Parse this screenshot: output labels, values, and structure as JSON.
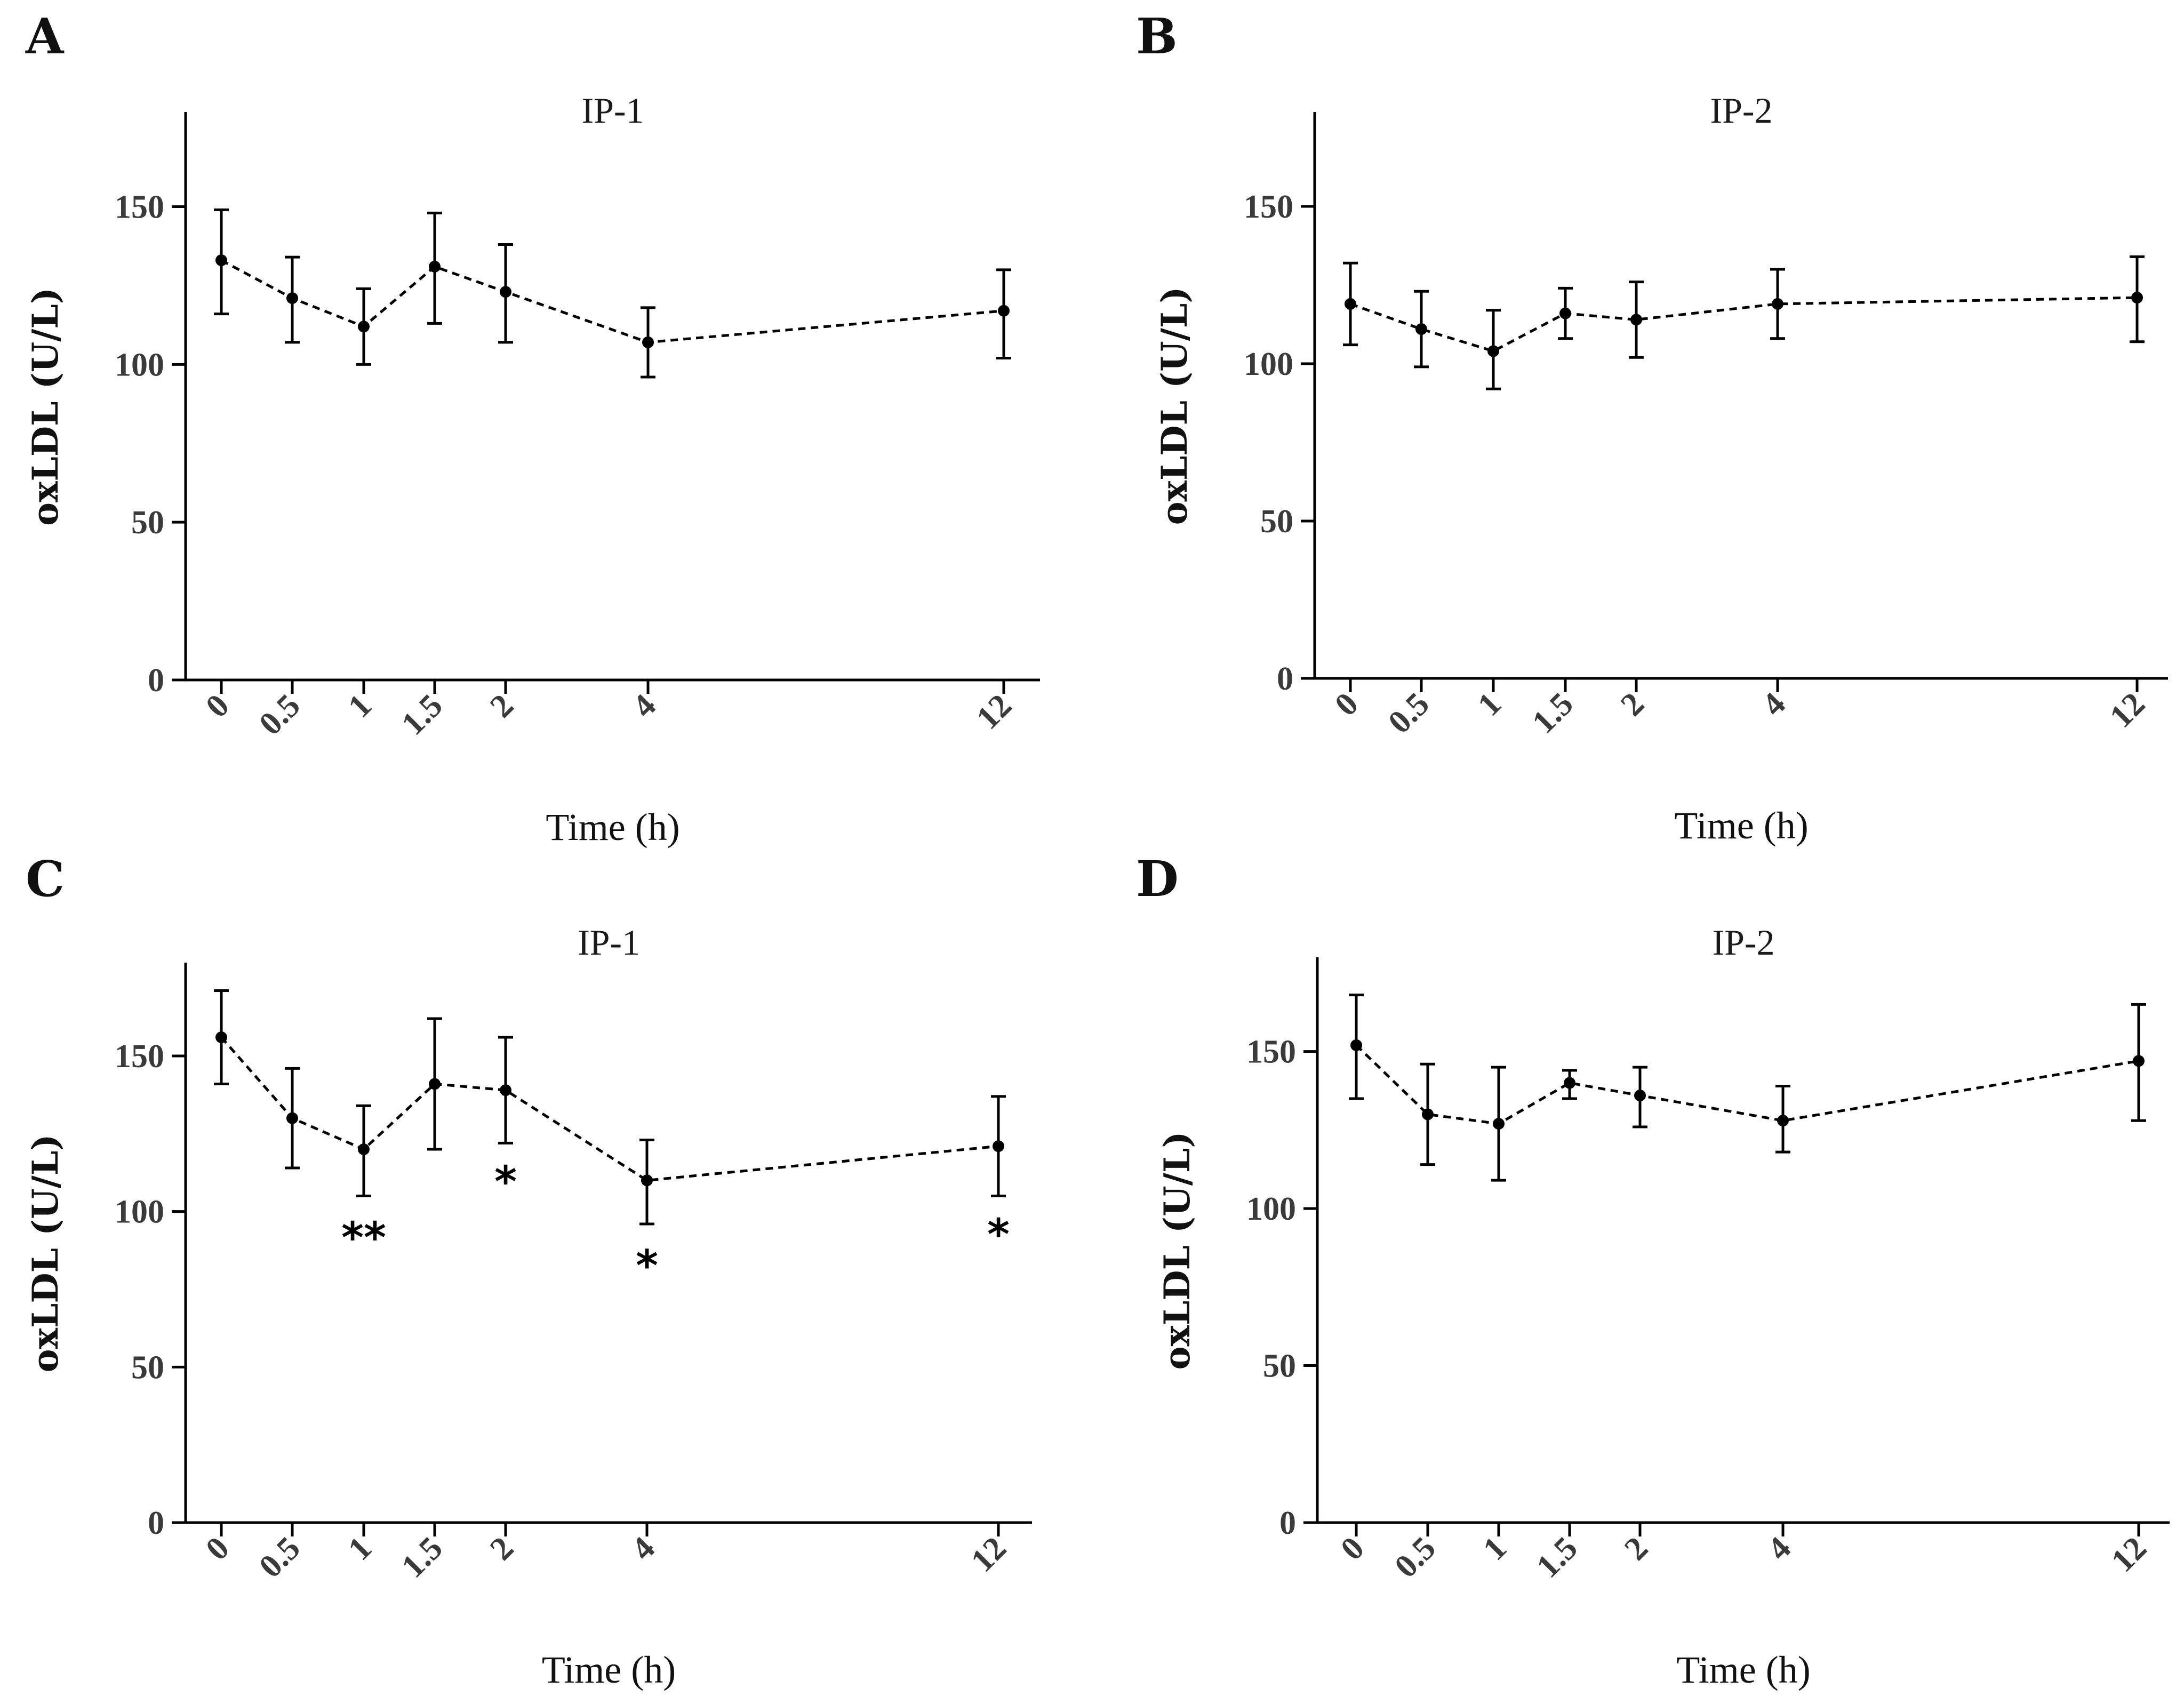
{
  "chart_data": [
    {
      "panel": "A",
      "type": "line",
      "title": "IP-1",
      "xlabel": "Time (h)",
      "ylabel": "oxLDL (U/L)",
      "ylim": [
        0,
        180
      ],
      "yticks": [
        0,
        50,
        100,
        150
      ],
      "x": [
        0,
        0.5,
        1,
        1.5,
        2,
        4,
        12
      ],
      "x_tick_labels": [
        "0",
        "0.5",
        "1",
        "1.5",
        "2",
        "4",
        "12"
      ],
      "series": [
        {
          "name": "oxLDL",
          "values": [
            133,
            121,
            112,
            131,
            123,
            107,
            117
          ],
          "error_low": [
            116,
            107,
            100,
            113,
            107,
            96,
            102
          ],
          "error_high": [
            149,
            134,
            124,
            148,
            138,
            118,
            130
          ]
        }
      ],
      "annotations": [],
      "grid": false
    },
    {
      "panel": "B",
      "type": "line",
      "title": "IP-2",
      "xlabel": "Time (h)",
      "ylabel": "oxLDL (U/L)",
      "ylim": [
        0,
        180
      ],
      "yticks": [
        0,
        50,
        100,
        150
      ],
      "x": [
        0,
        0.5,
        1,
        1.5,
        2,
        4,
        12
      ],
      "x_tick_labels": [
        "0",
        "0.5",
        "1",
        "1.5",
        "2",
        "4",
        "12"
      ],
      "series": [
        {
          "name": "oxLDL",
          "values": [
            119,
            111,
            104,
            116,
            114,
            119,
            121
          ],
          "error_low": [
            106,
            99,
            92,
            108,
            102,
            108,
            107
          ],
          "error_high": [
            132,
            123,
            117,
            124,
            126,
            130,
            134
          ]
        }
      ],
      "annotations": [],
      "grid": false
    },
    {
      "panel": "C",
      "type": "line",
      "title": "IP-1",
      "xlabel": "Time (h)",
      "ylabel": "oxLDL (U/L)",
      "ylim": [
        0,
        180
      ],
      "yticks": [
        0,
        50,
        100,
        150
      ],
      "x": [
        0,
        0.5,
        1,
        1.5,
        2,
        4,
        12
      ],
      "x_tick_labels": [
        "0",
        "0.5",
        "1",
        "1.5",
        "2",
        "4",
        "12"
      ],
      "series": [
        {
          "name": "oxLDL",
          "values": [
            156,
            130,
            120,
            141,
            139,
            110,
            121
          ],
          "error_low": [
            141,
            114,
            105,
            120,
            122,
            96,
            105
          ],
          "error_high": [
            171,
            146,
            134,
            162,
            156,
            123,
            137
          ]
        }
      ],
      "annotations": [
        {
          "x": 1,
          "y": 92,
          "text": "**"
        },
        {
          "x": 2,
          "y": 110,
          "text": "*"
        },
        {
          "x": 4,
          "y": 83,
          "text": "*"
        },
        {
          "x": 12,
          "y": 93,
          "text": "*"
        }
      ],
      "grid": false
    },
    {
      "panel": "D",
      "type": "line",
      "title": "IP-2",
      "xlabel": "Time (h)",
      "ylabel": "oxLDL (U/L)",
      "ylim": [
        0,
        180
      ],
      "yticks": [
        0,
        50,
        100,
        150
      ],
      "x": [
        0,
        0.5,
        1,
        1.5,
        2,
        4,
        12
      ],
      "x_tick_labels": [
        "0",
        "0.5",
        "1",
        "1.5",
        "2",
        "4",
        "12"
      ],
      "series": [
        {
          "name": "oxLDL",
          "values": [
            152,
            130,
            127,
            140,
            136,
            128,
            147
          ],
          "error_low": [
            135,
            114,
            109,
            135,
            126,
            118,
            128
          ],
          "error_high": [
            168,
            146,
            145,
            144,
            145,
            139,
            165
          ]
        }
      ],
      "annotations": [],
      "grid": false
    }
  ]
}
